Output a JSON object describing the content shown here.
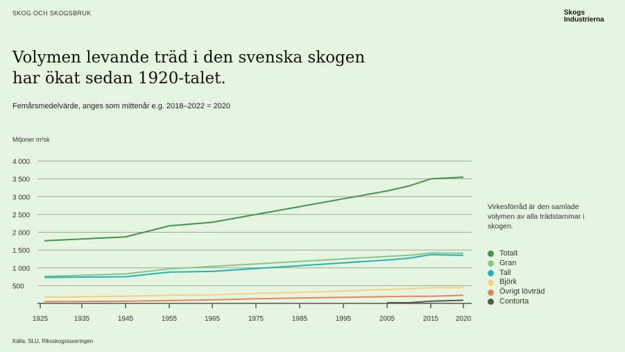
{
  "header": {
    "section": "SKOG OCH SKOGSBRUK",
    "logo": "Skogs Industrierna"
  },
  "title_lines": [
    "Volymen levande träd i den svenska skogen",
    "har ökat sedan 1920-talet."
  ],
  "subtitle": "Femårsmedelvärde, anges som mittenår e.g. 2018–2022 = 2020",
  "note": "Virkesförråd är den samlade volymen av alla trädstammar i skogen.",
  "source": "Källa: SLU, Riksskogstaxeringen",
  "chart_data": {
    "type": "line",
    "title": "",
    "ylabel": "Miljoner m³sk",
    "xlabel": "",
    "ylim": [
      0,
      4000
    ],
    "yticks": [
      500,
      1000,
      1500,
      2000,
      2500,
      3000,
      3500,
      4000
    ],
    "ytick_labels": [
      "500",
      "1 000",
      "1 500",
      "2 000",
      "2 500",
      "3 000",
      "3 500",
      "4 000"
    ],
    "xticks": [
      1925,
      1935,
      1945,
      1955,
      1965,
      1975,
      1985,
      1995,
      2005,
      2015,
      2020
    ],
    "grid": true,
    "legend_placement": "right",
    "x": [
      1926,
      1945,
      1955,
      1965,
      1975,
      1985,
      1995,
      2005,
      2010,
      2015,
      2020
    ],
    "series": [
      {
        "name": "Totalt",
        "color": "#3f9447",
        "values": [
          1760,
          1870,
          2180,
          2280,
          2500,
          2720,
          2940,
          3160,
          3300,
          3500,
          3550
        ]
      },
      {
        "name": "Gran",
        "color": "#86c48c",
        "values": [
          760,
          830,
          970,
          1040,
          1110,
          1180,
          1250,
          1320,
          1350,
          1420,
          1410
        ]
      },
      {
        "name": "Tall",
        "color": "#1fb3b8",
        "values": [
          730,
          750,
          880,
          900,
          980,
          1060,
          1140,
          1220,
          1270,
          1370,
          1350
        ]
      },
      {
        "name": "Björk",
        "color": "#f7cf7f",
        "values": [
          180,
          200,
          230,
          240,
          280,
          310,
          350,
          390,
          410,
          440,
          440
        ]
      },
      {
        "name": "Övrigt lövträd",
        "color": "#e8805c",
        "values": [
          50,
          60,
          80,
          100,
          130,
          150,
          170,
          190,
          200,
          200,
          230
        ]
      },
      {
        "name": "Contorta",
        "color": "#555555",
        "values": [
          null,
          null,
          null,
          null,
          null,
          null,
          null,
          20,
          20,
          60,
          90
        ]
      }
    ]
  }
}
